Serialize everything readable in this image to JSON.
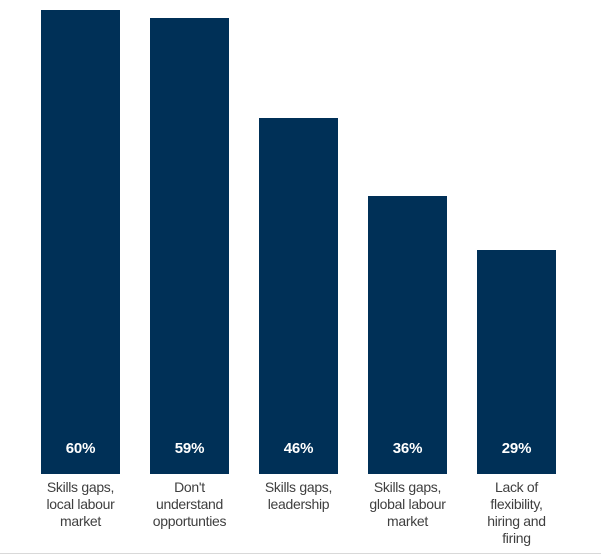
{
  "chart_data": {
    "type": "bar",
    "categories": [
      "Skills gaps, local labour market",
      "Don't understand opportunties",
      "Skills gaps, leadership",
      "Skills gaps, global labour market",
      "Lack of flexibility, hiring and firing"
    ],
    "category_lines": [
      [
        "Skills gaps,",
        "local labour",
        "market"
      ],
      [
        "Don't",
        "understand",
        "opportunties"
      ],
      [
        "Skills gaps,",
        "leadership"
      ],
      [
        "Skills gaps,",
        "global labour",
        "market"
      ],
      [
        "Lack of",
        "flexibility,",
        "hiring and",
        "firing"
      ]
    ],
    "values": [
      60,
      59,
      46,
      36,
      29
    ],
    "value_labels": [
      "60%",
      "59%",
      "46%",
      "36%",
      "29%"
    ],
    "title": "",
    "xlabel": "",
    "ylabel": "",
    "ylim": [
      0,
      61.3
    ],
    "unit": "%",
    "grid": false,
    "legend": false,
    "bar_color": "#003057",
    "value_label_color": "#ffffff",
    "category_label_color": "#3f3f3f"
  },
  "footer": {
    "divider_color": "#d9d9d9"
  }
}
